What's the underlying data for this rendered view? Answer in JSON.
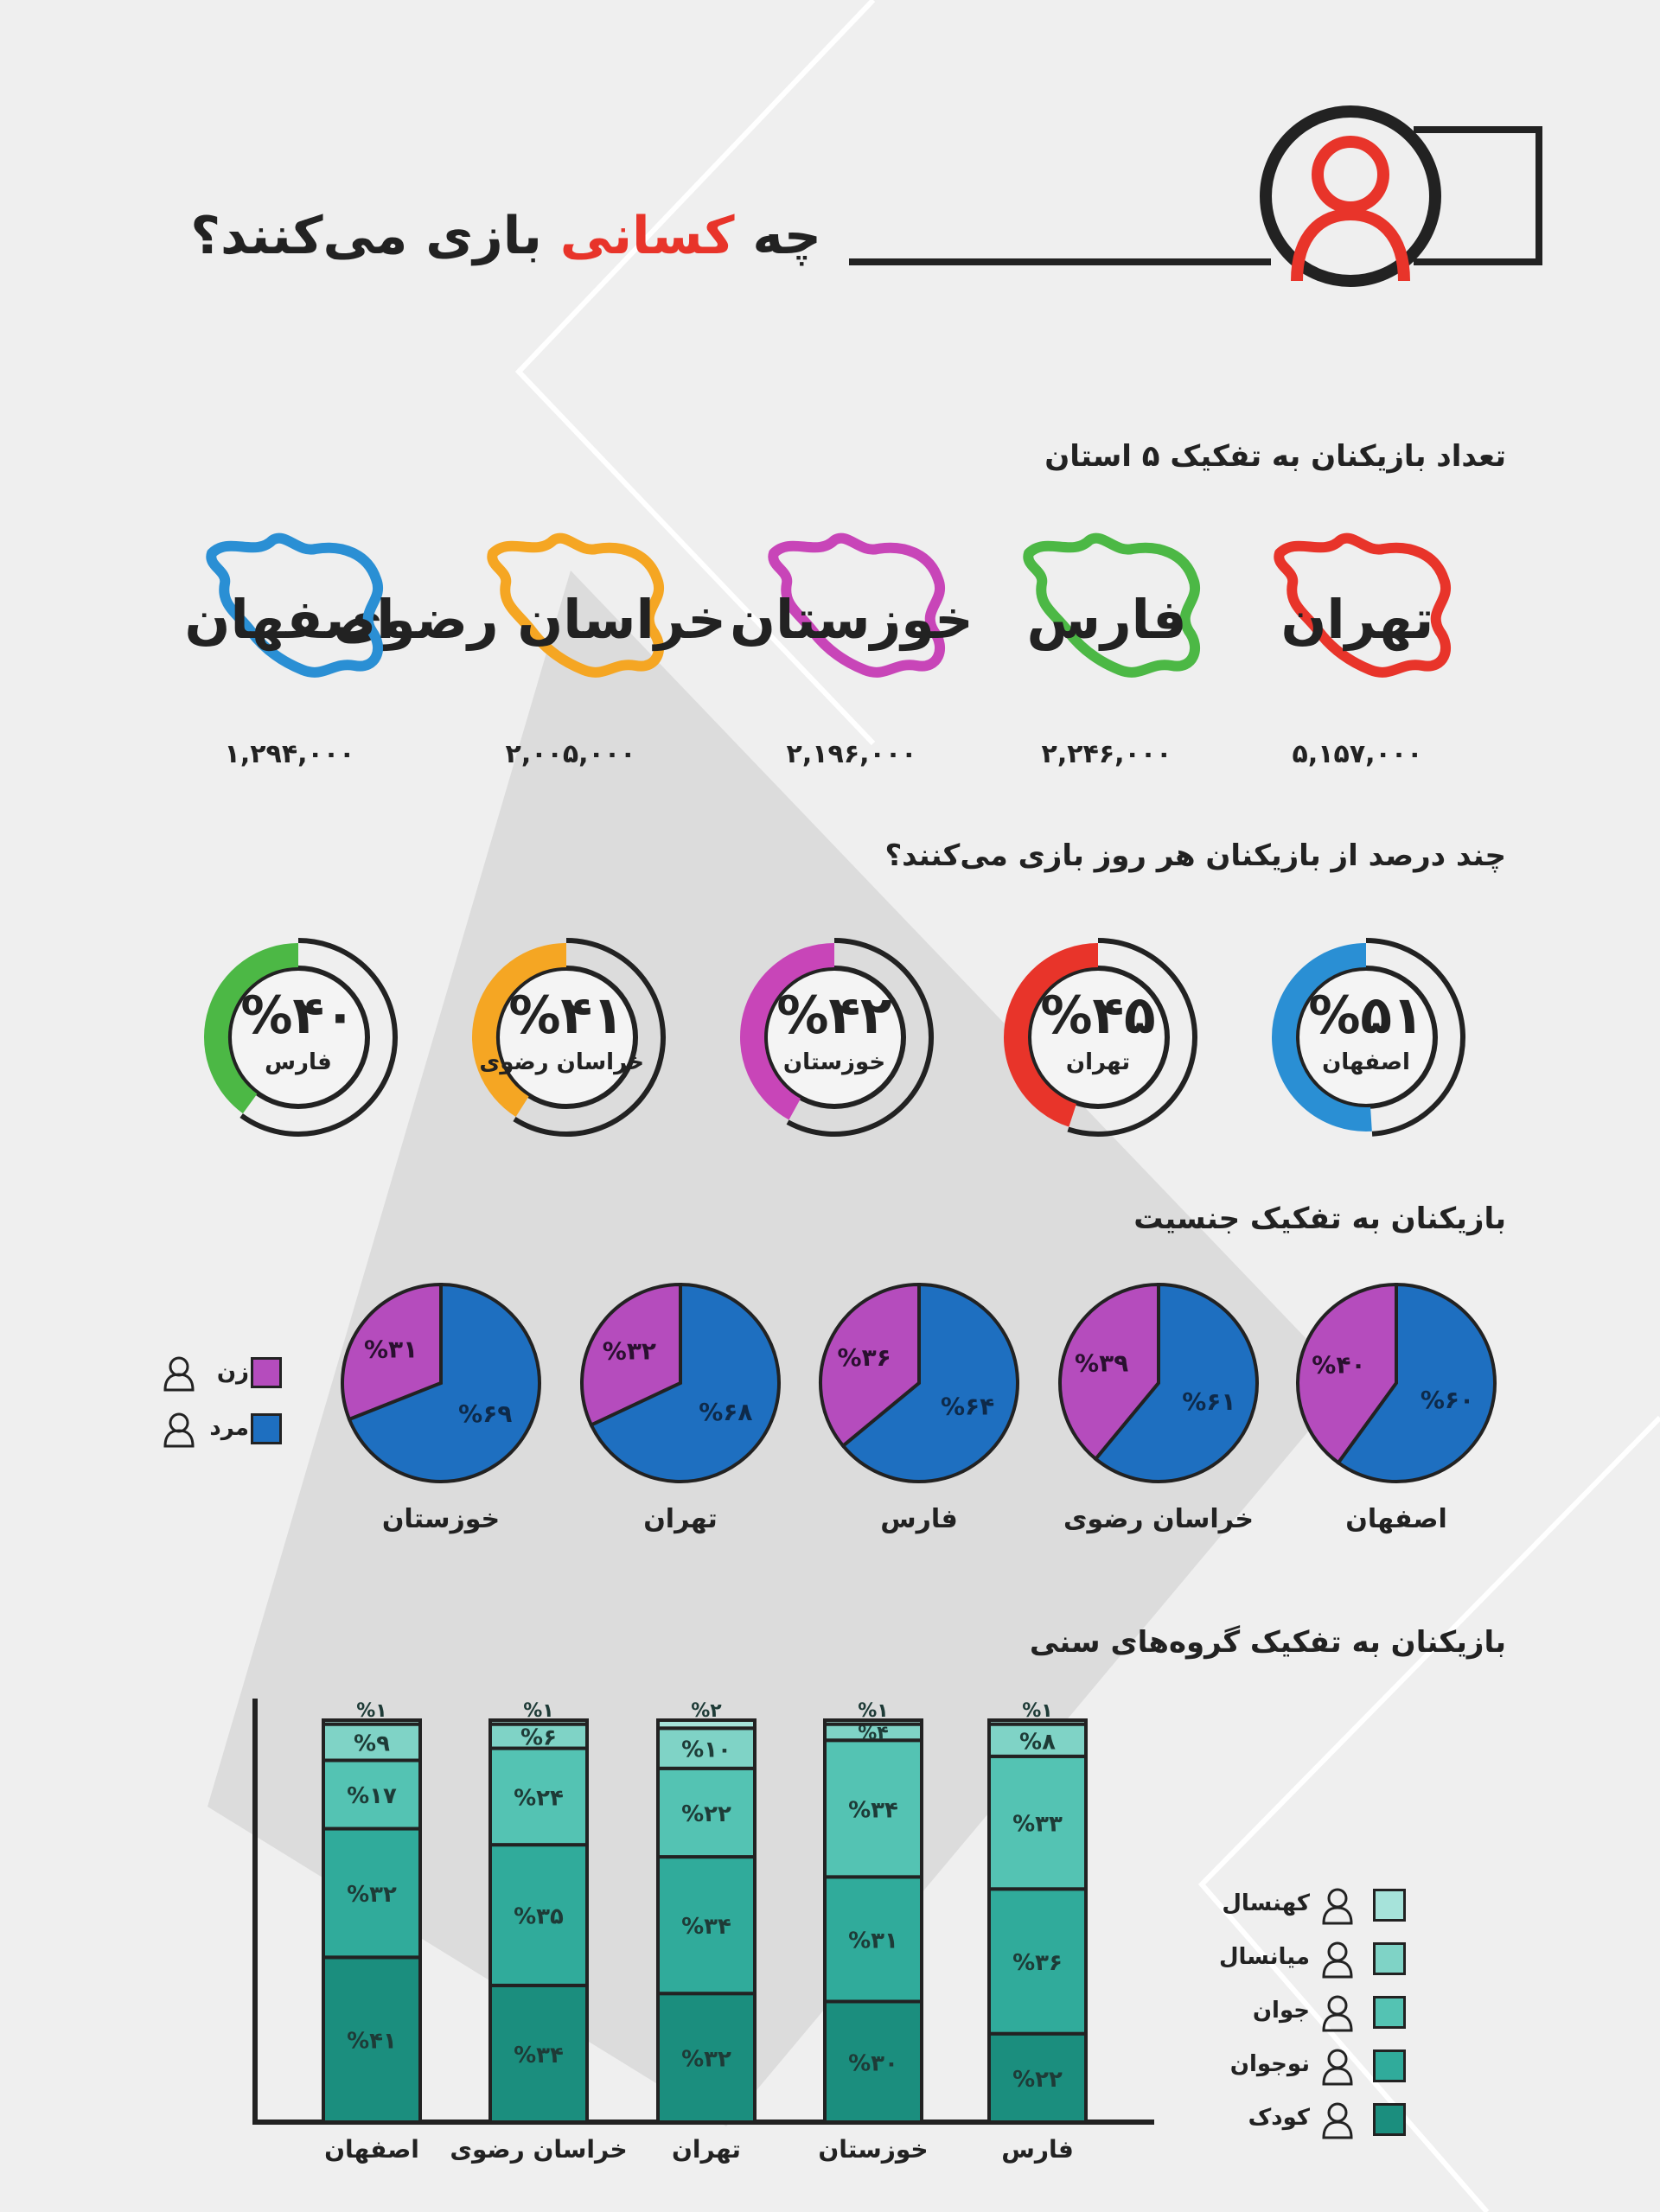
{
  "header": {
    "title_part_black_start": "چه ",
    "title_accent": "کسانی",
    "title_part_black_end": " بازی می‌کنند؟",
    "accent_color": "#e8342a",
    "icon": "person-circle-icon"
  },
  "section_provinces": {
    "title": "تعداد بازیکنان به تفکیک ۵ استان",
    "provinces": [
      {
        "name": "تهران",
        "value": "۵,۱۵۷,۰۰۰",
        "color": "#e8342a",
        "icon": "iran-map-outline-icon"
      },
      {
        "name": "فارس",
        "value": "۲,۲۴۶,۰۰۰",
        "color": "#4cb845",
        "icon": "iran-map-outline-icon"
      },
      {
        "name": "خوزستان",
        "value": "۲,۱۹۶,۰۰۰",
        "color": "#c845b8",
        "icon": "iran-map-outline-icon"
      },
      {
        "name": "خراسان رضوی",
        "value": "۲,۰۰۵,۰۰۰",
        "color": "#f5a623",
        "icon": "iran-map-outline-icon"
      },
      {
        "name": "اصفهان",
        "value": "۱,۲۹۴,۰۰۰",
        "color": "#2a8fd4",
        "icon": "iran-map-outline-icon"
      }
    ]
  },
  "section_daily": {
    "title": "چند درصد از بازیکنان هر روز بازی می‌کنند؟",
    "rings": [
      {
        "name": "اصفهان",
        "percent": 51,
        "label": "%۵۱",
        "color": "#2a8fd4"
      },
      {
        "name": "تهران",
        "percent": 45,
        "label": "%۴۵",
        "color": "#e8342a"
      },
      {
        "name": "خوزستان",
        "percent": 42,
        "label": "%۴۲",
        "color": "#c845b8"
      },
      {
        "name": "خراسان رضوی",
        "percent": 41,
        "label": "%۴۱",
        "color": "#f5a623"
      },
      {
        "name": "فارس",
        "percent": 40,
        "label": "%۴۰",
        "color": "#4cb845"
      }
    ]
  },
  "section_gender": {
    "title": "بازیکنان به تفکیک جنسیت",
    "legend": [
      {
        "label": "زن",
        "color": "#b54cbd",
        "icon": "woman-icon"
      },
      {
        "label": "مرد",
        "color": "#1e6fc0",
        "icon": "man-icon"
      }
    ]
  },
  "section_age": {
    "title": "بازیکنان به تفکیک گروه‌های سنی",
    "legend": [
      {
        "label": "کهنسال",
        "color": "#a6e3da",
        "icon": "elderly-icon"
      },
      {
        "label": "میانسال",
        "color": "#7fd3c6",
        "icon": "middle-aged-icon"
      },
      {
        "label": "جوان",
        "color": "#54c3b3",
        "icon": "young-icon"
      },
      {
        "label": "نوجوان",
        "color": "#30ab9b",
        "icon": "teen-icon"
      },
      {
        "label": "کودک",
        "color": "#1b8e7e",
        "icon": "child-icon"
      }
    ]
  },
  "chart_data": [
    {
      "type": "bar",
      "title": "تعداد بازیکنان به تفکیک ۵ استان",
      "categories": [
        "تهران",
        "فارس",
        "خوزستان",
        "خراسان رضوی",
        "اصفهان"
      ],
      "values": [
        5157000,
        2246000,
        2196000,
        2005000,
        1294000
      ],
      "value_labels": [
        "۵,۱۵۷,۰۰۰",
        "۲,۲۴۶,۰۰۰",
        "۲,۱۹۶,۰۰۰",
        "۲,۰۰۵,۰۰۰",
        "۱,۲۹۴,۰۰۰"
      ]
    },
    {
      "type": "pie",
      "title": "چند درصد از بازیکنان هر روز بازی می‌کنند؟",
      "categories": [
        "اصفهان",
        "تهران",
        "خوزستان",
        "خراسان رضوی",
        "فارس"
      ],
      "values": [
        51,
        45,
        42,
        41,
        40
      ],
      "unit": "%"
    },
    {
      "type": "pie",
      "title": "بازیکنان به تفکیک جنسیت",
      "legend": [
        "زن",
        "مرد"
      ],
      "pies": [
        {
          "name": "اصفهان",
          "female": 40,
          "male": 60,
          "female_label": "%۴۰",
          "male_label": "%۶۰"
        },
        {
          "name": "خراسان رضوی",
          "female": 39,
          "male": 61,
          "female_label": "%۳۹",
          "male_label": "%۶۱"
        },
        {
          "name": "فارس",
          "female": 36,
          "male": 64,
          "female_label": "%۳۶",
          "male_label": "%۶۴"
        },
        {
          "name": "تهران",
          "female": 32,
          "male": 68,
          "female_label": "%۳۲",
          "male_label": "%۶۸"
        },
        {
          "name": "خوزستان",
          "female": 31,
          "male": 69,
          "female_label": "%۳۱",
          "male_label": "%۶۹"
        }
      ]
    },
    {
      "type": "bar",
      "stacked": true,
      "title": "بازیکنان به تفکیک گروه‌های سنی",
      "categories": [
        "اصفهان",
        "خراسان رضوی",
        "تهران",
        "خوزستان",
        "فارس"
      ],
      "ylim": [
        0,
        100
      ],
      "series": [
        {
          "name": "کودک",
          "values": [
            41,
            34,
            32,
            30,
            22
          ],
          "labels": [
            "%۴۱",
            "%۳۴",
            "%۳۲",
            "%۳۰",
            "%۲۲"
          ]
        },
        {
          "name": "نوجوان",
          "values": [
            32,
            35,
            34,
            31,
            36
          ],
          "labels": [
            "%۳۲",
            "%۳۵",
            "%۳۴",
            "%۳۱",
            "%۳۶"
          ]
        },
        {
          "name": "جوان",
          "values": [
            17,
            24,
            22,
            34,
            33
          ],
          "labels": [
            "%۱۷",
            "%۲۴",
            "%۲۲",
            "%۳۴",
            "%۳۳"
          ]
        },
        {
          "name": "میانسال",
          "values": [
            9,
            6,
            10,
            4,
            8
          ],
          "labels": [
            "%۹",
            "%۶",
            "%۱۰",
            "%۴",
            "%۸"
          ]
        },
        {
          "name": "کهنسال",
          "values": [
            1,
            1,
            2,
            1,
            1
          ],
          "labels": [
            "%۱",
            "%۱",
            "%۲",
            "%۱",
            "%۱"
          ]
        }
      ]
    }
  ]
}
